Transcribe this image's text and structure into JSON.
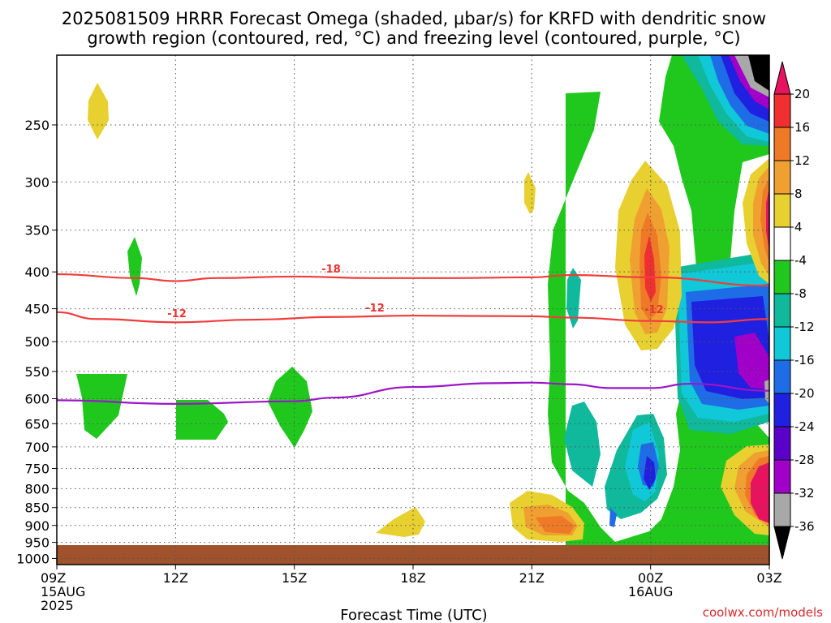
{
  "title": {
    "line1": "2025081509 HRRR Forecast Omega (shaded, µbar/s) for KRFD with dendritic snow",
    "line2": "growth region (contoured, red, °C) and freezing level (contoured, purple, °C)"
  },
  "credit": "coolwx.com/models",
  "chart_data": {
    "type": "heatmap",
    "title": "2025081509 HRRR Forecast Omega (shaded, µbar/s) for KRFD with dendritic snow growth region (contoured, red, °C) and freezing level (contoured, purple, °C)",
    "xlabel": "Forecast Time (UTC)",
    "ylabel": "",
    "x_ticks": [
      {
        "hour": 0,
        "label": "09Z",
        "sub": [
          "15AUG",
          "2025"
        ]
      },
      {
        "hour": 3,
        "label": "12Z"
      },
      {
        "hour": 6,
        "label": "15Z"
      },
      {
        "hour": 9,
        "label": "18Z"
      },
      {
        "hour": 12,
        "label": "21Z"
      },
      {
        "hour": 15,
        "label": "00Z",
        "sub": [
          "16AUG"
        ]
      },
      {
        "hour": 18,
        "label": "03Z"
      }
    ],
    "x_range_hours": [
      0,
      18
    ],
    "y_ticks": [
      250,
      300,
      350,
      400,
      450,
      500,
      550,
      600,
      650,
      700,
      750,
      800,
      850,
      900,
      950,
      1000
    ],
    "y_range_mb": [
      200,
      1020
    ],
    "y_scale": "log-pressure (inverted)",
    "grid": true,
    "colorbar": {
      "labels": [
        "20",
        "16",
        "12",
        "8",
        "4",
        "-4",
        "-8",
        "-12",
        "-16",
        "-20",
        "-24",
        "-28",
        "-32",
        "-36"
      ],
      "colors": [
        "#e8135e",
        "#f03030",
        "#ee7a28",
        "#f0a030",
        "#e8d030",
        "#ffffff",
        "#20c81e",
        "#10b89c",
        "#10c8d8",
        "#1e6de6",
        "#2020e0",
        "#5a00c8",
        "#a000c8",
        "#a8a8a8",
        "#000000"
      ]
    },
    "contour_labels": {
      "dgz_cold": "-18",
      "dgz_warm": "-12"
    },
    "series": [
      {
        "name": "-18",
        "points": [
          [
            0,
            403
          ],
          [
            2,
            408
          ],
          [
            3,
            412
          ],
          [
            4,
            408
          ],
          [
            6,
            406
          ],
          [
            8,
            408
          ],
          [
            10,
            408
          ],
          [
            12,
            407
          ],
          [
            13,
            404
          ],
          [
            15,
            407
          ],
          [
            18,
            418
          ]
        ]
      },
      {
        "name": "-12",
        "points": [
          [
            0,
            455
          ],
          [
            1,
            465
          ],
          [
            3,
            470
          ],
          [
            5,
            466
          ],
          [
            7,
            462
          ],
          [
            9,
            460
          ],
          [
            12,
            461
          ],
          [
            13,
            463
          ],
          [
            15,
            468
          ],
          [
            16.5,
            470
          ],
          [
            18,
            465
          ]
        ]
      },
      {
        "name": "0",
        "points": [
          [
            0,
            603
          ],
          [
            3,
            610
          ],
          [
            6,
            605
          ],
          [
            7,
            598
          ],
          [
            9,
            578
          ],
          [
            11,
            571
          ],
          [
            12,
            570
          ],
          [
            13,
            573
          ],
          [
            14,
            580
          ],
          [
            15,
            580
          ],
          [
            16,
            572
          ],
          [
            18,
            585
          ]
        ]
      }
    ],
    "omega_regions": [
      {
        "level": "4",
        "center_hours": 1.0,
        "center_mb": 245
      },
      {
        "level": "-4",
        "center_hours": 1.9,
        "center_mb": 410
      },
      {
        "level": "-4",
        "center_hours": 1.0,
        "center_mb": 645
      },
      {
        "level": "-4",
        "center_hours": 3.6,
        "center_mb": 670
      },
      {
        "level": "-4",
        "center_hours": 6.0,
        "center_mb": 640
      },
      {
        "level": "4",
        "center_hours": 8.8,
        "center_mb": 935
      },
      {
        "level": "4",
        "center_hours": 12.0,
        "center_mb": 320
      },
      {
        "level": "8",
        "center_hours": 12.7,
        "center_mb": 915
      },
      {
        "level": "-8",
        "center_hours": 13.6,
        "center_mb": 700
      },
      {
        "level": "-24",
        "center_hours": 15.0,
        "center_mb": 790
      },
      {
        "level": "16",
        "center_hours": 15.0,
        "center_mb": 405
      },
      {
        "level": "-28",
        "center_hours": 17.9,
        "center_mb": 215
      },
      {
        "level": "-24",
        "center_hours": 17.5,
        "center_mb": 470
      },
      {
        "level": "20",
        "center_hours": 17.9,
        "center_mb": 370
      },
      {
        "level": "20",
        "center_hours": 17.9,
        "center_mb": 820
      }
    ]
  }
}
